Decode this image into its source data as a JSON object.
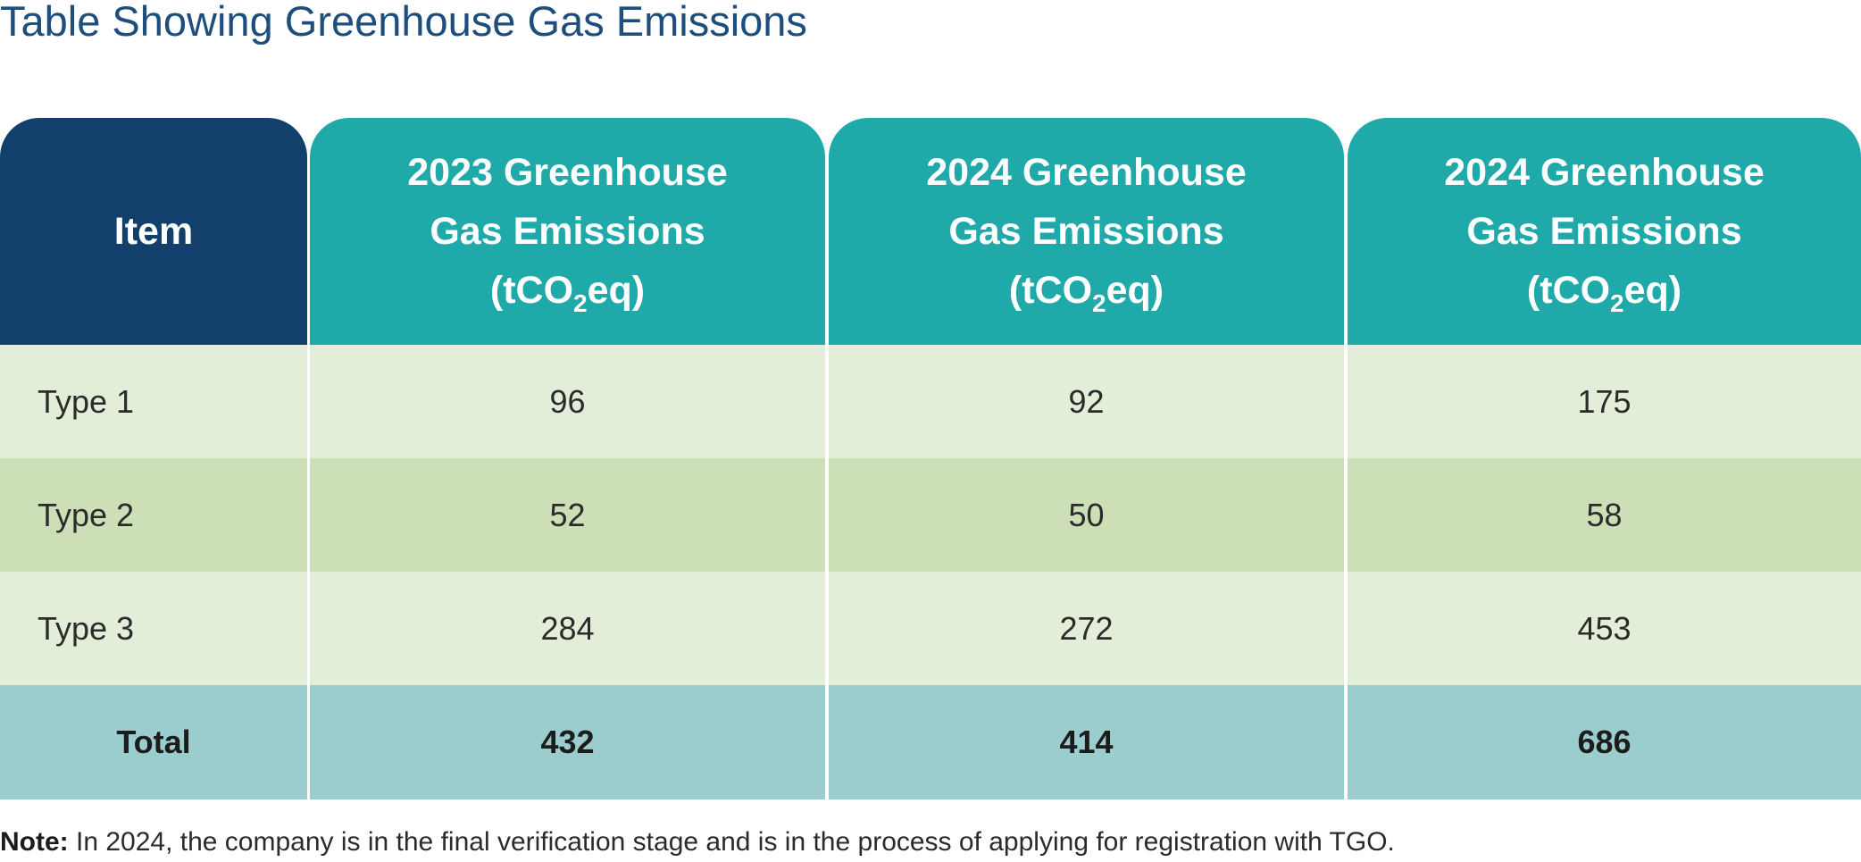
{
  "title": "Table Showing Greenhouse Gas Emissions",
  "table": {
    "header": {
      "item": "Item",
      "columns": [
        {
          "line1": "2023 Greenhouse",
          "line2": "Gas Emissions",
          "unit_prefix": "(tCO",
          "unit_sub": "2",
          "unit_suffix": "eq)"
        },
        {
          "line1": "2024 Greenhouse",
          "line2": "Gas Emissions",
          "unit_prefix": "(tCO",
          "unit_sub": "2",
          "unit_suffix": "eq)"
        },
        {
          "line1": "2024 Greenhouse",
          "line2": "Gas Emissions",
          "unit_prefix": "(tCO",
          "unit_sub": "2",
          "unit_suffix": "eq)"
        }
      ]
    },
    "rows": [
      {
        "label": "Type 1",
        "values": [
          "96",
          "92",
          "175"
        ]
      },
      {
        "label": "Type 2",
        "values": [
          "52",
          "50",
          "58"
        ]
      },
      {
        "label": "Type 3",
        "values": [
          "284",
          "272",
          "453"
        ]
      }
    ],
    "total": {
      "label": "Total",
      "values": [
        "432",
        "414",
        "686"
      ]
    }
  },
  "note": {
    "label": "Note:",
    "text": " In 2024, the company is in the final verification stage and is in the process of applying for registration with TGO."
  },
  "colors": {
    "title": "#1d4e7e",
    "header_item": "#123f6b",
    "header_columns": "#1fa9a8",
    "row_light": "#e3eed9",
    "row_dark": "#cddfb7",
    "row_total": "#9bcdce"
  }
}
